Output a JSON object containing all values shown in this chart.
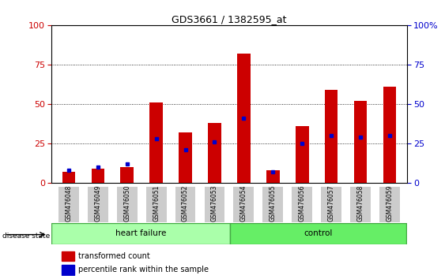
{
  "title": "GDS3661 / 1382595_at",
  "samples": [
    "GSM476048",
    "GSM476049",
    "GSM476050",
    "GSM476051",
    "GSM476052",
    "GSM476053",
    "GSM476054",
    "GSM476055",
    "GSM476056",
    "GSM476057",
    "GSM476058",
    "GSM476059"
  ],
  "red_values": [
    7,
    9,
    10,
    51,
    32,
    38,
    82,
    8,
    36,
    59,
    52,
    61
  ],
  "blue_values": [
    8,
    10,
    12,
    28,
    21,
    26,
    41,
    7,
    25,
    30,
    29,
    30
  ],
  "bar_width": 0.45,
  "red_color": "#CC0000",
  "blue_color": "#0000CC",
  "ylim": [
    0,
    100
  ],
  "yticks": [
    0,
    25,
    50,
    75,
    100
  ],
  "grid_style": "dotted",
  "group_label_hf": "heart failure",
  "group_label_ctrl": "control",
  "group_color_hf": "#AAFFAA",
  "group_color_ctrl": "#66EE66",
  "group_edge_color": "#44AA44",
  "disease_state_label": "disease state",
  "legend_red": "transformed count",
  "legend_blue": "percentile rank within the sample",
  "tick_bg_color": "#CCCCCC",
  "right_ytick_labels": [
    "0",
    "25",
    "50",
    "75",
    "100%"
  ]
}
